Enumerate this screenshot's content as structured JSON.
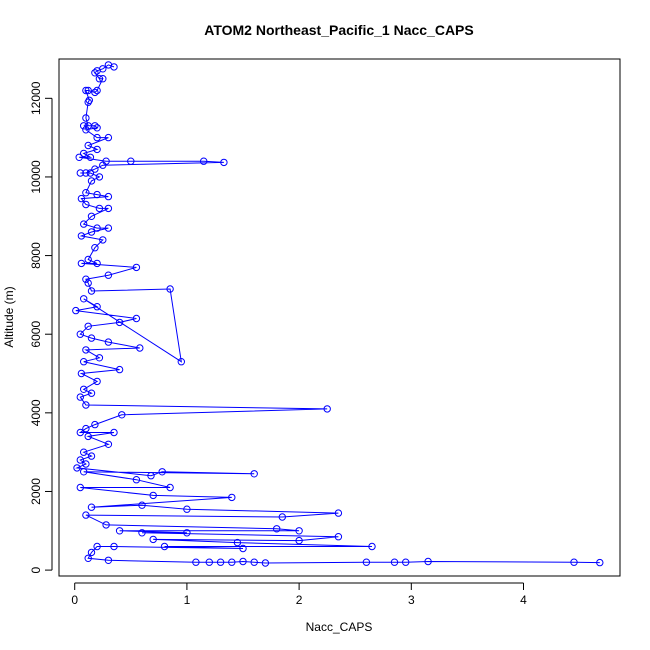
{
  "chart_data": {
    "type": "line",
    "title": "ATOM2 Northeast_Pacific_1 Nacc_CAPS",
    "xlabel": "Nacc_CAPS",
    "ylabel": "Altitude (m)",
    "xlim": [
      -0.14,
      4.86
    ],
    "ylim": [
      -150,
      13000
    ],
    "xticks": [
      0,
      1,
      2,
      3,
      4
    ],
    "yticks": [
      0,
      2000,
      4000,
      6000,
      8000,
      10000,
      12000
    ],
    "grid": false,
    "series": [
      {
        "color": "#0000ff",
        "marker": "open-circle",
        "points": [
          [
            0.35,
            12800
          ],
          [
            0.3,
            12850
          ],
          [
            0.25,
            12750
          ],
          [
            0.2,
            12700
          ],
          [
            0.18,
            12650
          ],
          [
            0.22,
            12500
          ],
          [
            0.25,
            12500
          ],
          [
            0.2,
            12200
          ],
          [
            0.18,
            12150
          ],
          [
            0.12,
            12200
          ],
          [
            0.1,
            12200
          ],
          [
            0.13,
            11950
          ],
          [
            0.12,
            11900
          ],
          [
            0.1,
            11500
          ],
          [
            0.12,
            11300
          ],
          [
            0.08,
            11300
          ],
          [
            0.18,
            11300
          ],
          [
            0.2,
            11250
          ],
          [
            0.1,
            11200
          ],
          [
            0.2,
            11000
          ],
          [
            0.3,
            11000
          ],
          [
            0.12,
            10800
          ],
          [
            0.2,
            10700
          ],
          [
            0.08,
            10600
          ],
          [
            0.14,
            10500
          ],
          [
            0.04,
            10500
          ],
          [
            0.28,
            10400
          ],
          [
            0.5,
            10400
          ],
          [
            1.15,
            10400
          ],
          [
            1.33,
            10370
          ],
          [
            0.25,
            10300
          ],
          [
            0.18,
            10200
          ],
          [
            0.1,
            10100
          ],
          [
            0.05,
            10100
          ],
          [
            0.14,
            10100
          ],
          [
            0.22,
            10000
          ],
          [
            0.15,
            9900
          ],
          [
            0.1,
            9600
          ],
          [
            0.2,
            9550
          ],
          [
            0.3,
            9500
          ],
          [
            0.06,
            9450
          ],
          [
            0.1,
            9300
          ],
          [
            0.22,
            9200
          ],
          [
            0.3,
            9200
          ],
          [
            0.15,
            9000
          ],
          [
            0.08,
            8800
          ],
          [
            0.2,
            8700
          ],
          [
            0.3,
            8700
          ],
          [
            0.15,
            8600
          ],
          [
            0.06,
            8500
          ],
          [
            0.25,
            8400
          ],
          [
            0.18,
            8200
          ],
          [
            0.12,
            7900
          ],
          [
            0.2,
            7800
          ],
          [
            0.06,
            7800
          ],
          [
            0.55,
            7700
          ],
          [
            0.3,
            7500
          ],
          [
            0.1,
            7400
          ],
          [
            0.12,
            7300
          ],
          [
            0.15,
            7100
          ],
          [
            0.85,
            7150
          ],
          [
            0.95,
            5300
          ],
          [
            0.08,
            6900
          ],
          [
            0.2,
            6700
          ],
          [
            0.01,
            6600
          ],
          [
            0.55,
            6400
          ],
          [
            0.4,
            6300
          ],
          [
            0.12,
            6200
          ],
          [
            0.05,
            6000
          ],
          [
            0.15,
            5900
          ],
          [
            0.3,
            5800
          ],
          [
            0.58,
            5650
          ],
          [
            0.1,
            5600
          ],
          [
            0.22,
            5400
          ],
          [
            0.08,
            5300
          ],
          [
            0.4,
            5100
          ],
          [
            0.06,
            5000
          ],
          [
            0.2,
            4800
          ],
          [
            0.08,
            4600
          ],
          [
            0.15,
            4500
          ],
          [
            0.05,
            4400
          ],
          [
            0.1,
            4200
          ],
          [
            2.25,
            4100
          ],
          [
            0.42,
            3950
          ],
          [
            0.18,
            3700
          ],
          [
            0.1,
            3600
          ],
          [
            0.05,
            3500
          ],
          [
            0.35,
            3500
          ],
          [
            0.12,
            3400
          ],
          [
            0.3,
            3200
          ],
          [
            0.08,
            3000
          ],
          [
            0.15,
            2900
          ],
          [
            0.05,
            2800
          ],
          [
            0.1,
            2700
          ],
          [
            0.02,
            2600
          ],
          [
            0.68,
            2400
          ],
          [
            0.78,
            2500
          ],
          [
            1.6,
            2450
          ],
          [
            0.08,
            2500
          ],
          [
            0.55,
            2300
          ],
          [
            0.85,
            2100
          ],
          [
            0.05,
            2100
          ],
          [
            0.7,
            1900
          ],
          [
            1.4,
            1850
          ],
          [
            0.15,
            1600
          ],
          [
            0.6,
            1650
          ],
          [
            1.0,
            1550
          ],
          [
            2.35,
            1450
          ],
          [
            1.85,
            1350
          ],
          [
            0.1,
            1400
          ],
          [
            0.28,
            1150
          ],
          [
            1.8,
            1050
          ],
          [
            2.0,
            1000
          ],
          [
            0.4,
            1000
          ],
          [
            1.0,
            950
          ],
          [
            0.6,
            950
          ],
          [
            2.35,
            850
          ],
          [
            2.0,
            750
          ],
          [
            0.7,
            780
          ],
          [
            1.45,
            700
          ],
          [
            2.65,
            600
          ],
          [
            0.8,
            600
          ],
          [
            1.5,
            550
          ],
          [
            0.35,
            600
          ],
          [
            0.2,
            600
          ],
          [
            0.15,
            450
          ],
          [
            0.12,
            300
          ],
          [
            0.3,
            250
          ],
          [
            1.08,
            200
          ],
          [
            1.2,
            200
          ],
          [
            1.3,
            200
          ],
          [
            1.4,
            200
          ],
          [
            1.5,
            220
          ],
          [
            1.6,
            200
          ],
          [
            1.7,
            180
          ],
          [
            2.6,
            200
          ],
          [
            2.85,
            200
          ],
          [
            2.95,
            200
          ],
          [
            3.15,
            220
          ],
          [
            4.45,
            200
          ],
          [
            4.68,
            190
          ]
        ]
      }
    ]
  }
}
